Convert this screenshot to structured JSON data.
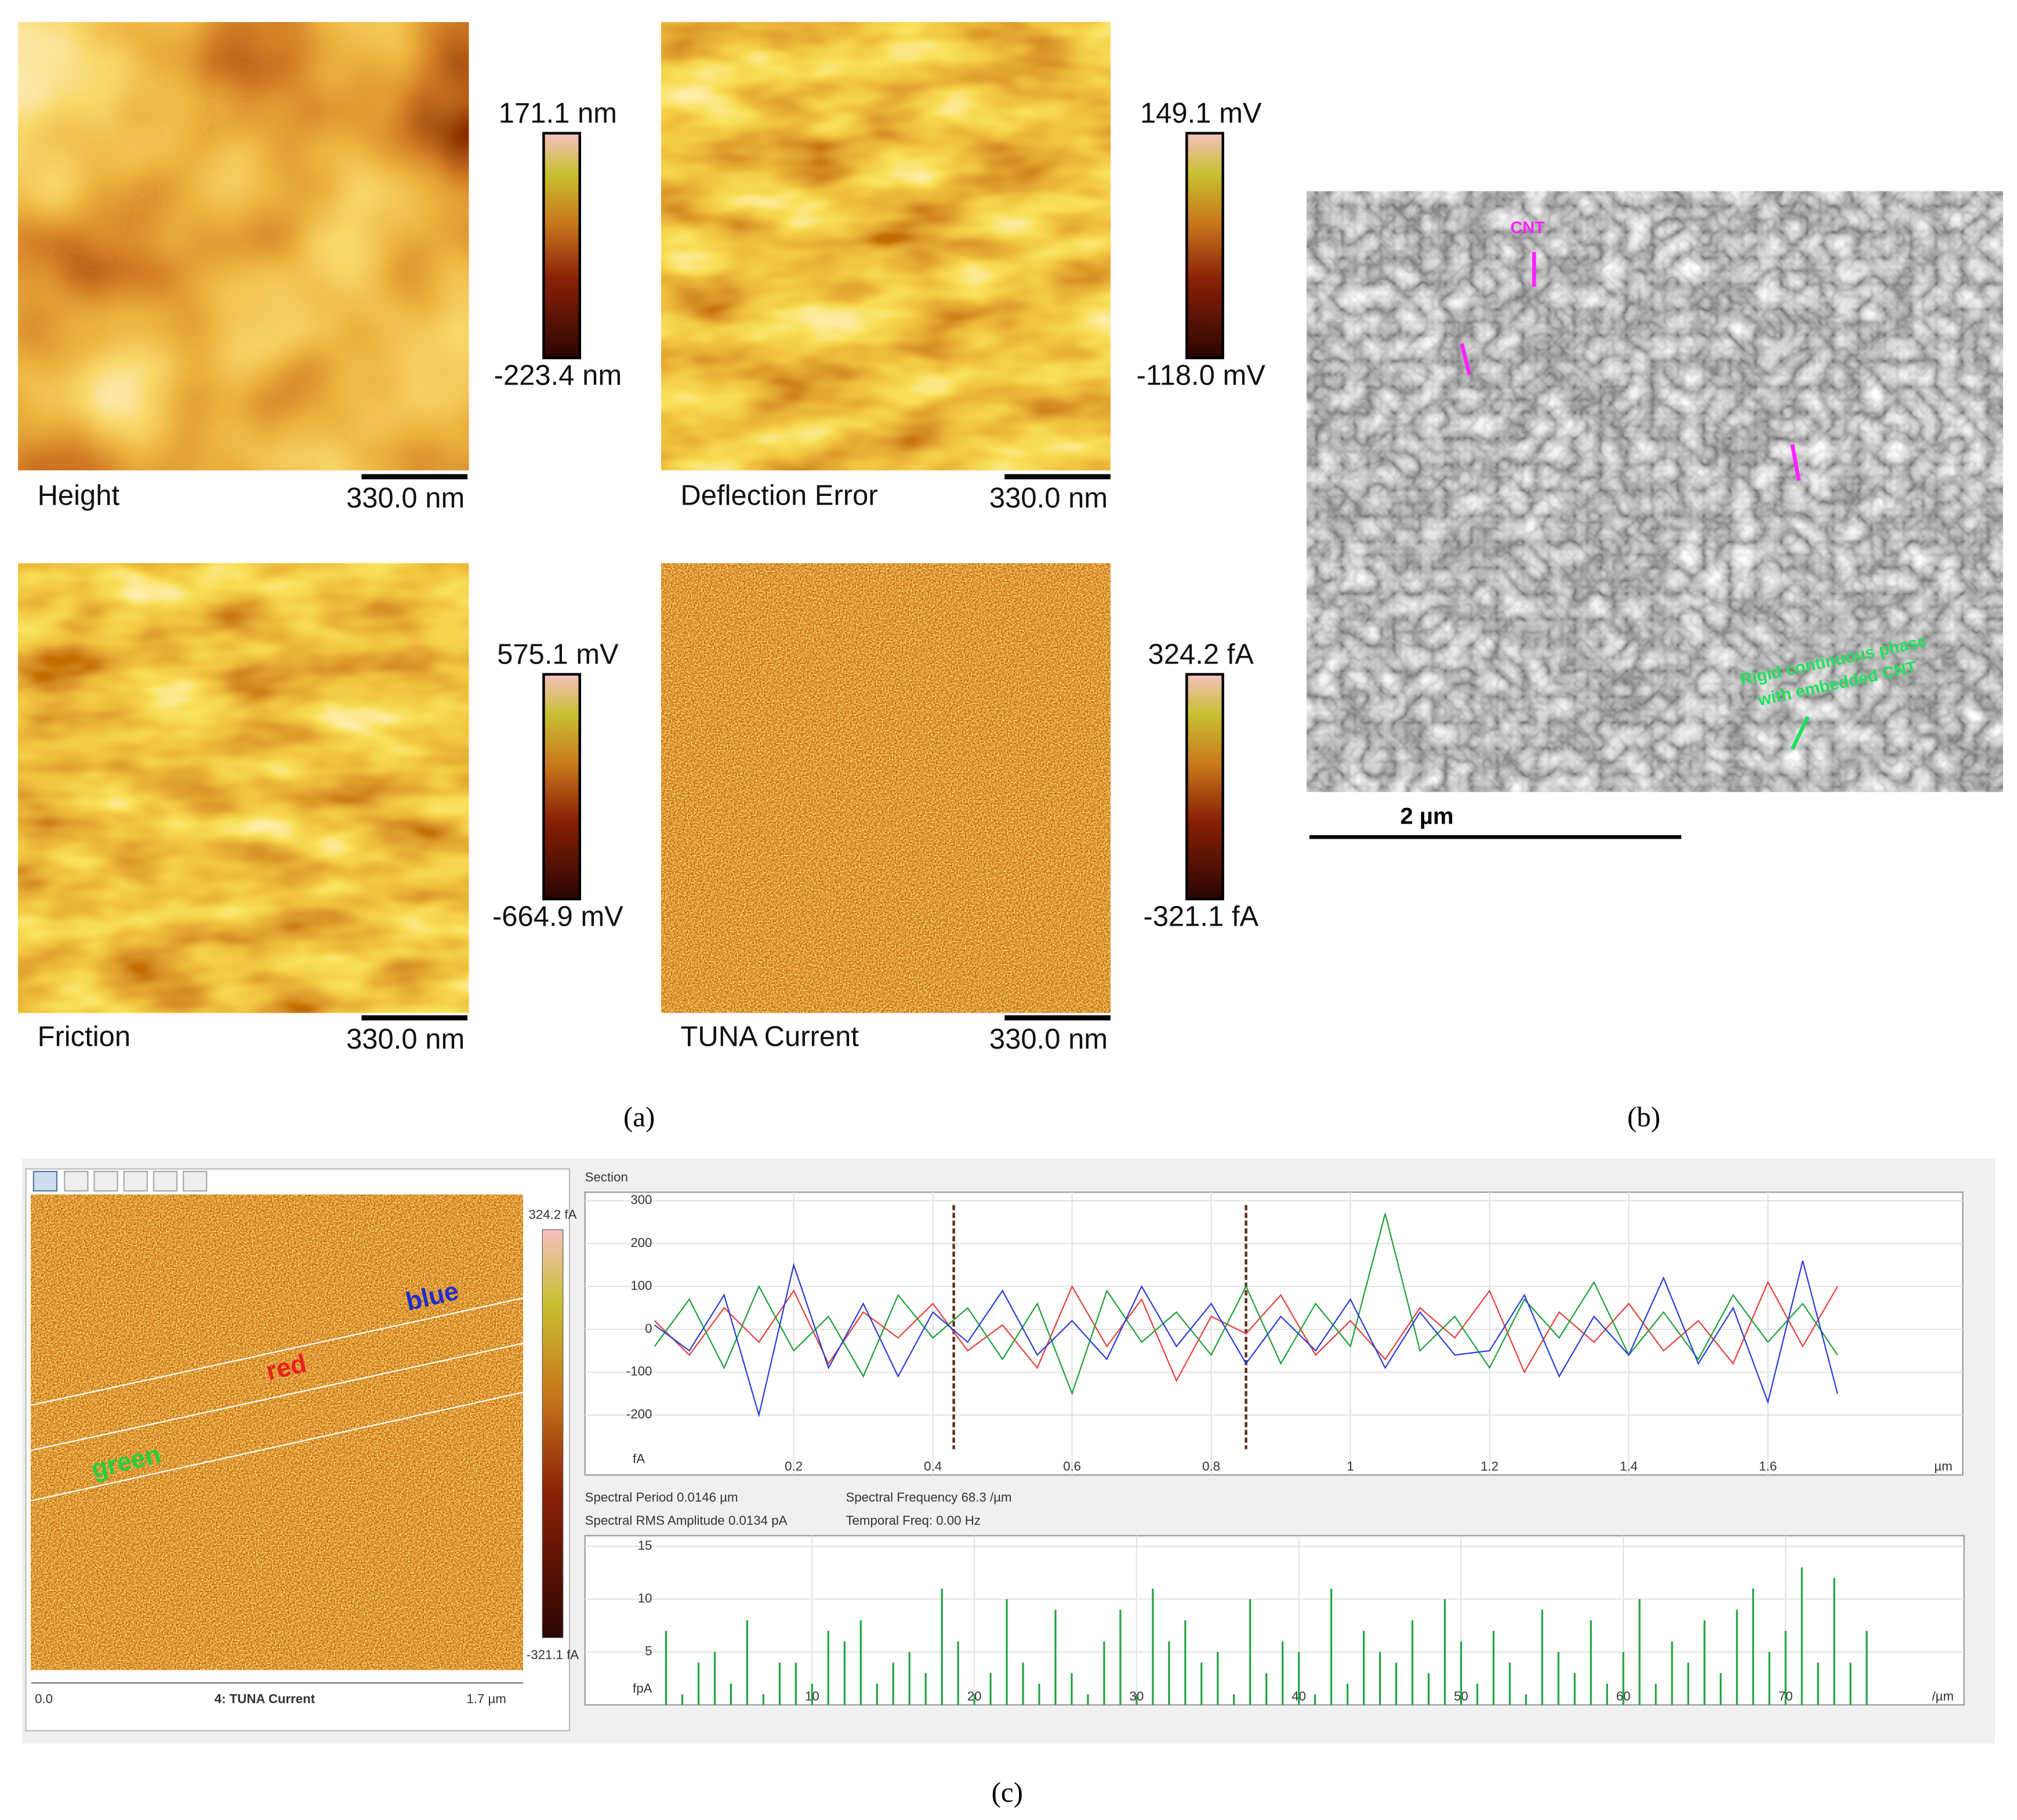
{
  "panel_a": {
    "maps": [
      {
        "label": "Height",
        "scale_bar": "330.0 nm",
        "max": "171.1 nm",
        "min": "-223.4 nm"
      },
      {
        "label": "Deflection Error",
        "scale_bar": "330.0 nm",
        "max": "149.1 mV",
        "min": "-118.0 mV"
      },
      {
        "label": "Friction",
        "scale_bar": "330.0 nm",
        "max": "575.1 mV",
        "min": "-664.9 mV"
      },
      {
        "label": "TUNA Current",
        "scale_bar": "330.0 nm",
        "max": "324.2 fA",
        "min": "-321.1 fA"
      }
    ],
    "caption": "(a)"
  },
  "panel_b": {
    "scale_bar": "2 µm",
    "arrow_label": "CNT",
    "phase_label": [
      "Rigid continuous phase",
      "with embedded CNT"
    ],
    "caption": "(b)"
  },
  "panel_c": {
    "map": {
      "max": "324.2 fA",
      "min": "-321.1 fA",
      "x_start": "0.0",
      "x_end": "1.7 µm",
      "title": "4: TUNA Current",
      "line_labels": [
        "blue",
        "red",
        "green"
      ]
    },
    "section_title": "Section",
    "info": [
      "Spectral Period 0.0146 µm",
      "Spectral Frequency 68.3 /µm",
      "Spectral RMS Amplitude 0.0134 pA",
      "Temporal Freq: 0.00 Hz"
    ],
    "caption": "(c)"
  },
  "chart_data": [
    {
      "type": "line",
      "y_unit": "fA",
      "x_unit": "µm",
      "xlim": [
        -0.1,
        1.88
      ],
      "ylim": [
        -340,
        320
      ],
      "xticks": [
        0.2,
        0.4,
        0.6,
        0.8,
        1,
        1.2,
        1.4,
        1.6
      ],
      "yticks": [
        -200,
        -100,
        0,
        100,
        200,
        300
      ],
      "grid": true,
      "cursors": [
        0.43,
        0.85
      ],
      "x": [
        0,
        0.05,
        0.1,
        0.15,
        0.2,
        0.25,
        0.3,
        0.35,
        0.4,
        0.45,
        0.5,
        0.55,
        0.6,
        0.65,
        0.7,
        0.75,
        0.8,
        0.85,
        0.9,
        0.95,
        1,
        1.05,
        1.1,
        1.15,
        1.2,
        1.25,
        1.3,
        1.35,
        1.4,
        1.45,
        1.5,
        1.55,
        1.6,
        1.65,
        1.7
      ],
      "series": [
        {
          "name": "red",
          "color": "#e8403c",
          "values": [
            20,
            -60,
            50,
            -30,
            90,
            -80,
            40,
            -20,
            60,
            -50,
            10,
            -90,
            100,
            -40,
            70,
            -120,
            30,
            -10,
            80,
            -60,
            20,
            -70,
            50,
            -20,
            90,
            -100,
            40,
            -30,
            60,
            -50,
            20,
            -80,
            110,
            -40,
            100
          ]
        },
        {
          "name": "green",
          "color": "#1ea23a",
          "values": [
            -40,
            70,
            -90,
            100,
            -50,
            30,
            -110,
            80,
            -20,
            50,
            -70,
            60,
            -150,
            90,
            -30,
            40,
            -60,
            100,
            -80,
            60,
            -40,
            270,
            -50,
            30,
            -90,
            70,
            -20,
            110,
            -60,
            40,
            -70,
            80,
            -30,
            60,
            -60
          ]
        },
        {
          "name": "blue",
          "color": "#2b3fd6",
          "values": [
            10,
            -50,
            80,
            -200,
            150,
            -90,
            60,
            -110,
            40,
            -30,
            90,
            -60,
            20,
            -70,
            100,
            -40,
            60,
            -80,
            30,
            -50,
            70,
            -90,
            40,
            -60,
            -50,
            80,
            -110,
            30,
            -60,
            120,
            -80,
            50,
            -170,
            160,
            -150
          ]
        }
      ]
    },
    {
      "type": "bar",
      "y_unit": "fpA",
      "x_unit": "/µm",
      "xlim": [
        -4,
        81
      ],
      "ylim": [
        0,
        16
      ],
      "xticks": [
        10,
        20,
        30,
        40,
        50,
        60,
        70
      ],
      "yticks": [
        5,
        10,
        15
      ],
      "grid": true,
      "color": "#1ea23a",
      "x": [
        1,
        2,
        3,
        4,
        5,
        6,
        7,
        8,
        9,
        10,
        11,
        12,
        13,
        14,
        15,
        16,
        17,
        18,
        19,
        20,
        21,
        22,
        23,
        24,
        25,
        26,
        27,
        28,
        29,
        30,
        31,
        32,
        33,
        34,
        35,
        36,
        37,
        38,
        39,
        40,
        41,
        42,
        43,
        44,
        45,
        46,
        47,
        48,
        49,
        50,
        51,
        52,
        53,
        54,
        55,
        56,
        57,
        58,
        59,
        60,
        61,
        62,
        63,
        64,
        65,
        66,
        67,
        68,
        69,
        70,
        71,
        72,
        73,
        74,
        75
      ],
      "values": [
        7,
        1,
        4,
        5,
        2,
        8,
        1,
        4,
        4,
        2,
        7,
        6,
        8,
        2,
        4,
        5,
        3,
        11,
        6,
        1,
        3,
        10,
        4,
        2,
        9,
        3,
        1,
        6,
        9,
        1,
        11,
        6,
        8,
        4,
        5,
        1,
        10,
        3,
        6,
        5,
        1,
        11,
        2,
        7,
        5,
        4,
        8,
        3,
        10,
        6,
        2,
        7,
        4,
        1,
        9,
        5,
        3,
        8,
        2,
        5,
        10,
        2,
        6,
        4,
        8,
        3,
        9,
        11,
        5,
        7,
        13,
        4,
        12,
        4,
        7
      ]
    }
  ]
}
